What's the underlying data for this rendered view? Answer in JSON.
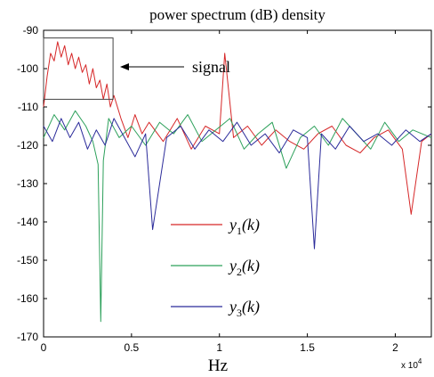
{
  "chart_data": {
    "type": "line",
    "title": "power spectrum (dB) density",
    "xlabel": "Hz",
    "ylabel": "",
    "x_multiplier": "x 10",
    "x_multiplier_exponent": "4",
    "xlim": [
      0,
      22050
    ],
    "ylim": [
      -170,
      -90
    ],
    "x_ticks": [
      0,
      5000,
      10000,
      15000,
      20000
    ],
    "x_tick_labels": [
      "0",
      "0.5",
      "1",
      "1.5",
      "2"
    ],
    "y_ticks": [
      -90,
      -100,
      -110,
      -120,
      -130,
      -140,
      -150,
      -160,
      -170
    ],
    "y_tick_labels": [
      "-90",
      "-100",
      "-110",
      "-120",
      "-130",
      "-140",
      "-150",
      "-160",
      "-170"
    ],
    "grid": false,
    "legend_position": "center",
    "annotation": {
      "text": "signal",
      "box_x": [
        0,
        3950
      ],
      "box_y": [
        -108,
        -92
      ]
    },
    "series": [
      {
        "name": "y1(k)",
        "label_main": "y",
        "label_sub": "1",
        "label_arg": "(k)",
        "color": "#d62728",
        "x": [
          0,
          200,
          400,
          600,
          800,
          1000,
          1200,
          1400,
          1600,
          1800,
          2000,
          2200,
          2400,
          2600,
          2800,
          3000,
          3200,
          3400,
          3600,
          3800,
          4000,
          4400,
          4800,
          5200,
          5600,
          6000,
          6800,
          7600,
          8400,
          9200,
          10000,
          10300,
          10800,
          11600,
          12400,
          13200,
          14000,
          14800,
          15600,
          16400,
          17200,
          18000,
          18800,
          19600,
          20400,
          20900,
          21500,
          22050
        ],
        "values": [
          -110,
          -102,
          -96,
          -98,
          -93,
          -97,
          -94,
          -99,
          -96,
          -100,
          -97,
          -101,
          -99,
          -104,
          -100,
          -105,
          -103,
          -108,
          -104,
          -110,
          -107,
          -113,
          -118,
          -112,
          -117,
          -114,
          -119,
          -113,
          -121,
          -115,
          -117,
          -96,
          -118,
          -115,
          -120,
          -116,
          -119,
          -121,
          -117,
          -115,
          -120,
          -122,
          -118,
          -116,
          -121,
          -138,
          -119,
          -117
        ]
      },
      {
        "name": "y2(k)",
        "label_main": "y",
        "label_sub": "2",
        "label_arg": "(k)",
        "color": "#2ca05a",
        "x": [
          0,
          600,
          1200,
          1800,
          2400,
          2800,
          3100,
          3250,
          3400,
          3700,
          4300,
          5000,
          5800,
          6600,
          7400,
          8200,
          9000,
          9800,
          10600,
          11400,
          12200,
          13000,
          13800,
          14600,
          15400,
          16200,
          17000,
          17800,
          18600,
          19400,
          20200,
          21000,
          22050
        ],
        "values": [
          -118,
          -112,
          -116,
          -111,
          -115,
          -119,
          -125,
          -166,
          -124,
          -113,
          -118,
          -115,
          -120,
          -114,
          -117,
          -112,
          -119,
          -116,
          -113,
          -121,
          -117,
          -114,
          -126,
          -118,
          -115,
          -120,
          -113,
          -117,
          -121,
          -114,
          -119,
          -116,
          -118
        ]
      },
      {
        "name": "y3(k)",
        "label_main": "y",
        "label_sub": "3",
        "label_arg": "(k)",
        "color": "#2b2b9a",
        "x": [
          0,
          500,
          1000,
          1500,
          2000,
          2500,
          3000,
          3500,
          4000,
          4600,
          5200,
          5800,
          6200,
          7000,
          7800,
          8600,
          9400,
          10200,
          11000,
          11800,
          12600,
          13400,
          14200,
          15000,
          15400,
          15800,
          16600,
          17400,
          18200,
          19000,
          19800,
          20600,
          21400,
          22050
        ],
        "values": [
          -115,
          -119,
          -113,
          -118,
          -114,
          -121,
          -116,
          -120,
          -113,
          -118,
          -123,
          -117,
          -142,
          -118,
          -115,
          -121,
          -116,
          -119,
          -114,
          -120,
          -117,
          -122,
          -116,
          -118,
          -147,
          -117,
          -121,
          -115,
          -119,
          -117,
          -120,
          -116,
          -119,
          -117
        ]
      }
    ]
  }
}
